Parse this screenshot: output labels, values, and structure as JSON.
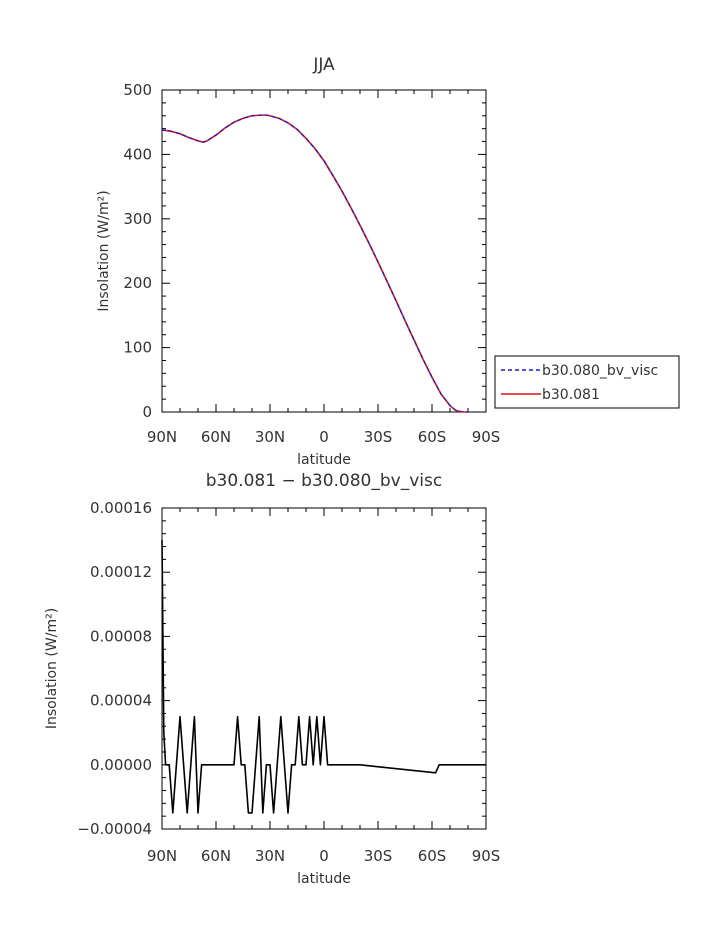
{
  "chart_data": [
    {
      "type": "line",
      "title": "JJA",
      "xlabel": "latitude",
      "ylabel": "Insolation (W/m²)",
      "xlim": [
        90,
        -90
      ],
      "ylim": [
        0,
        500
      ],
      "xticks": [
        90,
        60,
        30,
        0,
        -30,
        -60,
        -90
      ],
      "xtick_labels": [
        "90N",
        "60N",
        "30N",
        "0",
        "30S",
        "60S",
        "90S"
      ],
      "yticks": [
        0,
        100,
        200,
        300,
        400,
        500
      ],
      "ytick_labels": [
        "0",
        "100",
        "200",
        "300",
        "400",
        "500"
      ],
      "grid": false,
      "legend_position": "right",
      "x": [
        90,
        85,
        80,
        75,
        70,
        67,
        65,
        60,
        55,
        50,
        45,
        40,
        35,
        32,
        30,
        25,
        20,
        15,
        10,
        5,
        0,
        -5,
        -10,
        -15,
        -20,
        -25,
        -30,
        -35,
        -40,
        -45,
        -50,
        -55,
        -60,
        -65,
        -70,
        -73,
        -75,
        -78,
        -80
      ],
      "series": [
        {
          "name": "b30.080_bv_visc",
          "color": "#1a1acc",
          "dash": "dashed",
          "values": [
            438,
            436,
            432,
            426,
            421,
            419,
            421,
            430,
            441,
            450,
            456,
            460,
            461,
            461,
            460,
            456,
            449,
            439,
            425,
            409,
            390,
            367,
            343,
            317,
            290,
            262,
            233,
            203,
            173,
            142,
            112,
            82,
            54,
            28,
            10,
            3,
            1,
            0,
            0
          ]
        },
        {
          "name": "b30.081",
          "color": "#e01010",
          "dash": "solid",
          "values": [
            438,
            436,
            432,
            426,
            421,
            419,
            421,
            430,
            441,
            450,
            456,
            460,
            461,
            461,
            460,
            456,
            449,
            439,
            425,
            409,
            390,
            367,
            343,
            317,
            290,
            262,
            233,
            203,
            173,
            142,
            112,
            82,
            54,
            28,
            10,
            3,
            1,
            0,
            0
          ]
        }
      ]
    },
    {
      "type": "line",
      "title": "b30.081 − b30.080_bv_visc",
      "xlabel": "latitude",
      "ylabel": "Insolation (W/m²)",
      "xlim": [
        90,
        -90
      ],
      "ylim": [
        -4e-05,
        0.00016
      ],
      "xticks": [
        90,
        60,
        30,
        0,
        -30,
        -60,
        -90
      ],
      "xtick_labels": [
        "90N",
        "60N",
        "30N",
        "0",
        "30S",
        "60S",
        "90S"
      ],
      "yticks": [
        -4e-05,
        0,
        4e-05,
        8e-05,
        0.00012,
        0.00016
      ],
      "ytick_labels": [
        "−0.00004",
        "0.00000",
        "0.00004",
        "0.00008",
        "0.00012",
        "0.00016"
      ],
      "grid": false,
      "x": [
        90,
        89,
        88,
        86,
        84,
        82,
        80,
        78,
        76,
        74,
        72,
        70,
        68,
        66,
        64,
        50,
        48,
        46,
        44,
        42,
        40,
        38,
        36,
        34,
        32,
        30,
        28,
        26,
        24,
        22,
        20,
        18,
        16,
        14,
        12,
        10,
        8,
        6,
        4,
        2,
        0,
        -2,
        -4,
        -6,
        -8,
        -10,
        -12,
        -14,
        -16,
        -18,
        -20,
        -62,
        -64,
        -66,
        -68,
        -70,
        -90
      ],
      "series": [
        {
          "name": "",
          "color": "#000000",
          "dash": "solid",
          "values": [
            0.00014,
            2e-05,
            0,
            0,
            -3e-05,
            0,
            3e-05,
            0,
            -3e-05,
            0,
            3e-05,
            -3e-05,
            0,
            0,
            0,
            0,
            3e-05,
            0,
            0,
            -3e-05,
            -3e-05,
            0,
            3e-05,
            -3e-05,
            0,
            0,
            -3e-05,
            0,
            3e-05,
            0,
            -3e-05,
            0,
            0,
            3e-05,
            0,
            0,
            3e-05,
            0,
            3e-05,
            0,
            3e-05,
            0,
            0,
            0,
            0,
            0,
            0,
            0,
            0,
            0,
            0,
            -5e-06,
            0,
            0,
            0,
            0,
            0
          ]
        }
      ]
    }
  ]
}
